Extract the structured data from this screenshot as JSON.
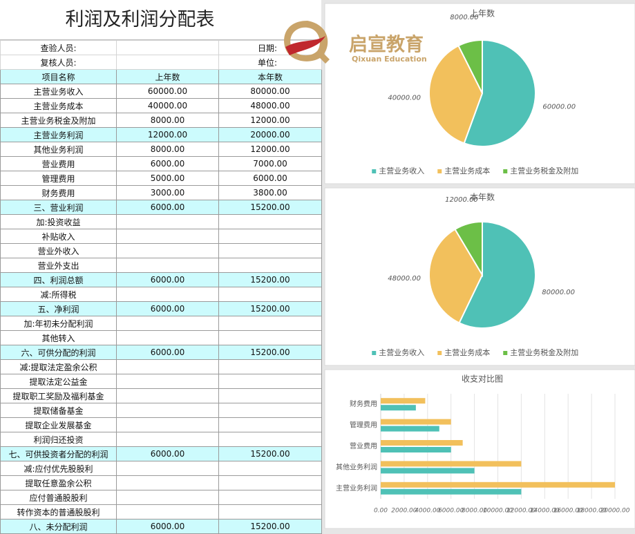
{
  "title": "利润及利润分配表",
  "logo": {
    "brand": "启宣教育",
    "subtitle": "Qixuan Education"
  },
  "meta": [
    [
      "查验人员:",
      "日期:"
    ],
    [
      "复核人员:",
      "单位:"
    ]
  ],
  "table": {
    "header": [
      "项目名称",
      "上年数",
      "本年数"
    ],
    "rows": [
      {
        "cells": [
          "主营业务收入",
          "60000.00",
          "80000.00"
        ]
      },
      {
        "cells": [
          "主营业务成本",
          "40000.00",
          "48000.00"
        ]
      },
      {
        "cells": [
          "主营业务税金及附加",
          "8000.00",
          "12000.00"
        ]
      },
      {
        "cells": [
          "主营业务利润",
          "12000.00",
          "20000.00"
        ],
        "highlight": true
      },
      {
        "cells": [
          "其他业务利润",
          "8000.00",
          "12000.00"
        ]
      },
      {
        "cells": [
          "营业费用",
          "6000.00",
          "7000.00"
        ]
      },
      {
        "cells": [
          "管理费用",
          "5000.00",
          "6000.00"
        ]
      },
      {
        "cells": [
          "财务费用",
          "3000.00",
          "3800.00"
        ]
      },
      {
        "cells": [
          "三、营业利润",
          "6000.00",
          "15200.00"
        ],
        "highlight": true
      },
      {
        "cells": [
          "加:投资收益"
        ]
      },
      {
        "cells": [
          "补贴收入"
        ]
      },
      {
        "cells": [
          "营业外收入"
        ]
      },
      {
        "cells": [
          "营业外支出"
        ]
      },
      {
        "cells": [
          "四、利润总额",
          "6000.00",
          "15200.00"
        ],
        "highlight": true
      },
      {
        "cells": [
          "减:所得税"
        ]
      },
      {
        "cells": [
          "五、净利润",
          "6000.00",
          "15200.00"
        ],
        "highlight": true
      },
      {
        "cells": [
          "加:年初未分配利润"
        ]
      },
      {
        "cells": [
          "其他转入"
        ]
      },
      {
        "cells": [
          "六、可供分配的利润",
          "6000.00",
          "15200.00"
        ],
        "highlight": true
      },
      {
        "cells": [
          "减:提取法定盈余公积"
        ]
      },
      {
        "cells": [
          "提取法定公益金"
        ]
      },
      {
        "cells": [
          "提取职工奖励及福利基金"
        ]
      },
      {
        "cells": [
          "提取储备基金"
        ]
      },
      {
        "cells": [
          "提取企业发展基金"
        ]
      },
      {
        "cells": [
          "利润归还投资"
        ]
      },
      {
        "cells": [
          "七、可供投资者分配的利润",
          "6000.00",
          "15200.00"
        ],
        "highlight": true
      },
      {
        "cells": [
          "减:应付优先股股利"
        ]
      },
      {
        "cells": [
          "提取任意盈余公积"
        ]
      },
      {
        "cells": [
          "应付普通股股利"
        ]
      },
      {
        "cells": [
          "转作资本的普通股股利"
        ]
      },
      {
        "cells": [
          "八、未分配利润",
          "6000.00",
          "15200.00"
        ],
        "highlight": true
      }
    ]
  },
  "chart_data": [
    {
      "type": "pie",
      "title": "上年数",
      "categories": [
        "主营业务收入",
        "主营业务成本",
        "主营业务税金及附加"
      ],
      "values": [
        60000,
        40000,
        8000
      ],
      "value_labels": [
        "60000.00",
        "40000.00",
        "8000.00"
      ],
      "colors": [
        "#4fc1b6",
        "#f2c05c",
        "#6cbf47"
      ],
      "legend": "bottom"
    },
    {
      "type": "pie",
      "title": "本年数",
      "categories": [
        "主营业务收入",
        "主营业务成本",
        "主营业务税金及附加"
      ],
      "values": [
        80000,
        48000,
        12000
      ],
      "value_labels": [
        "80000.00",
        "48000.00",
        "12000.00"
      ],
      "colors": [
        "#4fc1b6",
        "#f2c05c",
        "#6cbf47"
      ],
      "legend": "bottom"
    },
    {
      "type": "hbar",
      "title": "收支对比图",
      "categories": [
        "主营业务利润",
        "其他业务利润",
        "营业费用",
        "管理费用",
        "财务费用"
      ],
      "series": [
        {
          "color": "#4fc1b6",
          "values": [
            12000,
            8000,
            6000,
            5000,
            3000
          ]
        },
        {
          "color": "#f2c05c",
          "values": [
            20000,
            12000,
            7000,
            6000,
            3800
          ]
        }
      ],
      "xlim": [
        0,
        20000
      ],
      "xticks": [
        {
          "value": 0,
          "label": "0.00"
        },
        {
          "value": 2000,
          "label": "2000.00"
        },
        {
          "value": 4000,
          "label": "4000.00"
        },
        {
          "value": 6000,
          "label": "6000.00"
        },
        {
          "value": 8000,
          "label": "8000.00"
        },
        {
          "value": 10000,
          "label": "10000.00"
        },
        {
          "value": 12000,
          "label": "12000.00"
        },
        {
          "value": 14000,
          "label": "14000.00"
        },
        {
          "value": 16000,
          "label": "16000.00"
        },
        {
          "value": 18000,
          "label": "18000.00"
        },
        {
          "value": 20000,
          "label": "20000.00"
        }
      ],
      "grid": true
    }
  ]
}
